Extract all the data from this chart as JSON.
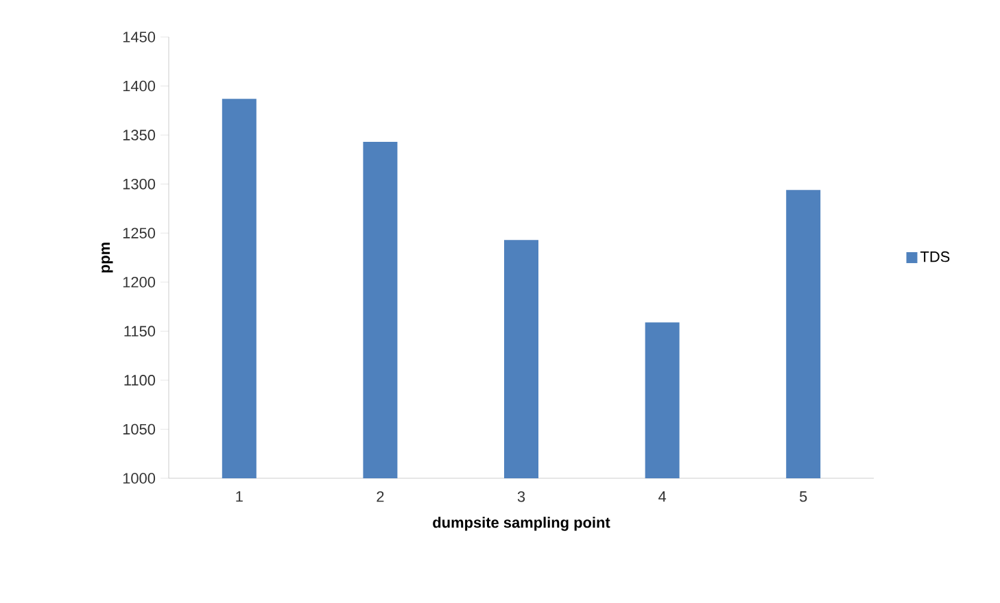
{
  "chart_data": {
    "type": "bar",
    "xlabel": "dumpsite sampling point",
    "ylabel": "ppm",
    "categories": [
      "1",
      "2",
      "3",
      "4",
      "5"
    ],
    "series": [
      {
        "name": "TDS",
        "color": "#4f81bd",
        "values": [
          1387,
          1343,
          1243,
          1159,
          1294
        ]
      }
    ],
    "ylim": [
      1000,
      1450
    ],
    "yticks": [
      1000,
      1050,
      1100,
      1150,
      1200,
      1250,
      1300,
      1350,
      1400,
      1450
    ],
    "grid": false,
    "legend": "right"
  }
}
